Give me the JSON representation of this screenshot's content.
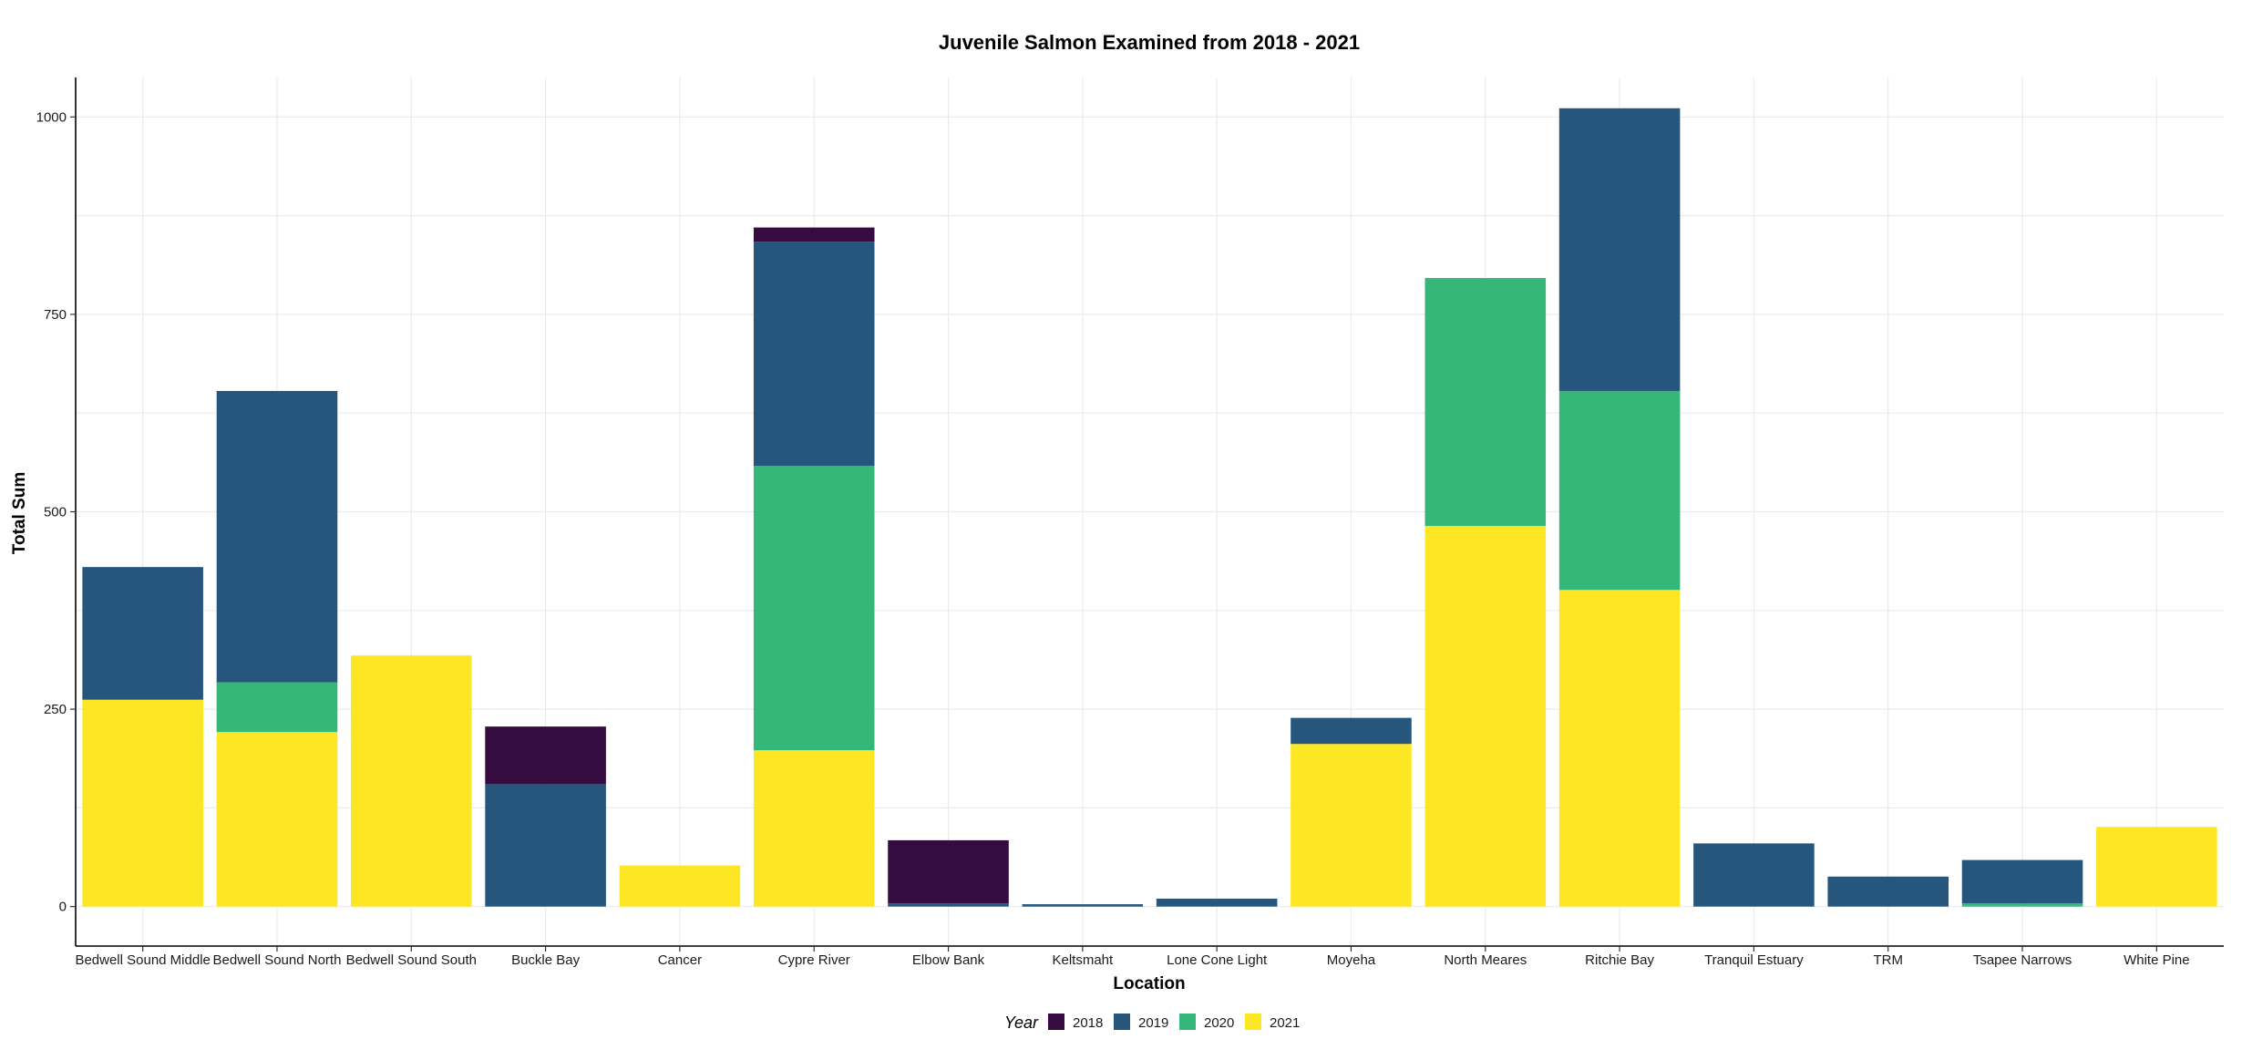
{
  "chart_data": {
    "type": "bar",
    "stacked": true,
    "title": "Juvenile Salmon Examined from 2018 - 2021",
    "xlabel": "Location",
    "ylabel": "Total Sum",
    "ylim": [
      -50,
      1050
    ],
    "yticks": [
      0,
      250,
      500,
      750,
      1000
    ],
    "grid": true,
    "legend": {
      "title": "Year",
      "position": "bottom"
    },
    "categories": [
      "Bedwell Sound Middle",
      "Bedwell Sound North",
      "Bedwell Sound South",
      "Buckle Bay",
      "Cancer",
      "Cypre River",
      "Elbow Bank",
      "Keltsmaht",
      "Lone Cone Light",
      "Moyeha",
      "North Meares",
      "Ritchie Bay",
      "Tranquil Estuary",
      "TRM",
      "Tsapee Narrows",
      "White Pine"
    ],
    "series": [
      {
        "name": "2021",
        "color": "#fde725",
        "values": [
          262,
          221,
          318,
          0,
          52,
          198,
          0,
          0,
          0,
          206,
          482,
          401,
          0,
          0,
          0,
          101
        ]
      },
      {
        "name": "2020",
        "color": "#35b779",
        "values": [
          0,
          63,
          0,
          0,
          0,
          360,
          0,
          0,
          0,
          0,
          314,
          252,
          0,
          0,
          4,
          0
        ]
      },
      {
        "name": "2019",
        "color": "#26567c",
        "values": [
          168,
          369,
          0,
          155,
          0,
          284,
          4,
          3,
          10,
          33,
          0,
          358,
          80,
          38,
          55,
          0
        ]
      },
      {
        "name": "2018",
        "color": "#360b40",
        "values": [
          0,
          0,
          0,
          73,
          0,
          18,
          80,
          0,
          0,
          0,
          0,
          0,
          0,
          0,
          0,
          0
        ]
      }
    ],
    "legend_order": [
      "2018",
      "2019",
      "2020",
      "2021"
    ]
  }
}
